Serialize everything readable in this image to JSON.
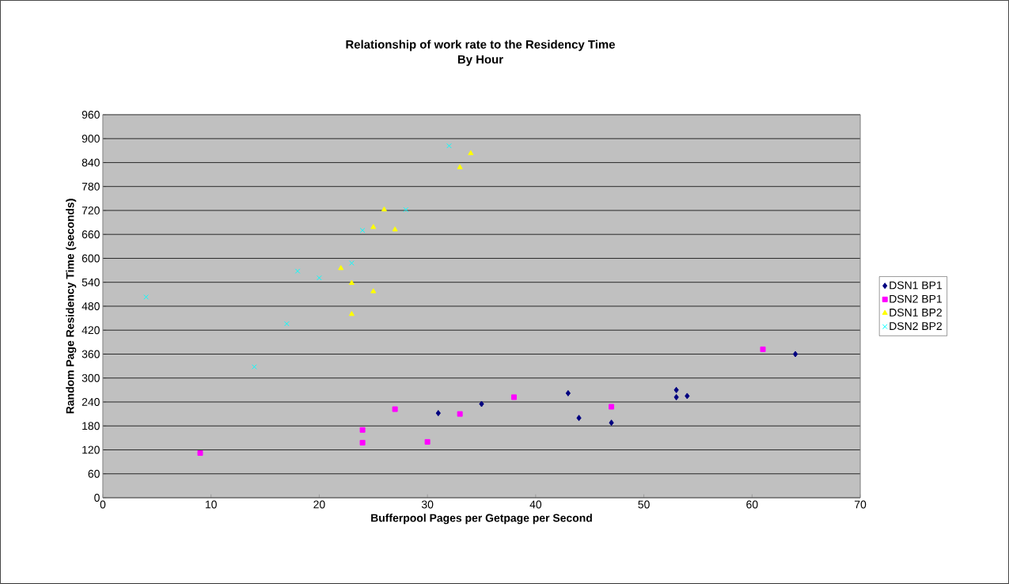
{
  "chart_data": {
    "type": "scatter",
    "title": "Relationship of work rate to the Residency Time",
    "subtitle": "By Hour",
    "xlabel": "Bufferpool Pages per Getpage per Second",
    "ylabel": "Random Page Residency Time (seconds)",
    "xlim": [
      0,
      70
    ],
    "xticks": [
      0,
      10,
      20,
      30,
      40,
      50,
      60,
      70
    ],
    "ylim": [
      0,
      960
    ],
    "yticks": [
      0,
      60,
      120,
      180,
      240,
      300,
      360,
      420,
      480,
      540,
      600,
      660,
      720,
      780,
      840,
      900,
      960
    ],
    "grid": "y",
    "legend": "right",
    "series": [
      {
        "name": "DSN1 BP1",
        "color": "#000080",
        "marker": "diamond",
        "x": [
          31,
          35,
          43,
          44,
          47,
          53,
          53,
          54,
          64
        ],
        "values": [
          212,
          235,
          262,
          200,
          188,
          270,
          252,
          255,
          360
        ]
      },
      {
        "name": "DSN2 BP1",
        "color": "#ff00ff",
        "marker": "square",
        "x": [
          9,
          24,
          24,
          27,
          30,
          33,
          38,
          47,
          61
        ],
        "values": [
          112,
          170,
          138,
          222,
          140,
          210,
          252,
          228,
          372
        ]
      },
      {
        "name": "DSN1 BP2",
        "color": "#ffff00",
        "marker": "triangle",
        "x": [
          22,
          23,
          23,
          25,
          25,
          26,
          27,
          33,
          34
        ],
        "values": [
          575,
          538,
          460,
          517,
          678,
          722,
          672,
          828,
          863
        ]
      },
      {
        "name": "DSN2 BP2",
        "color": "#00ffff",
        "marker": "cross",
        "x": [
          4,
          14,
          17,
          18,
          20,
          23,
          24,
          28,
          32
        ],
        "values": [
          503,
          328,
          436,
          568,
          551,
          588,
          670,
          722,
          882
        ]
      }
    ]
  }
}
